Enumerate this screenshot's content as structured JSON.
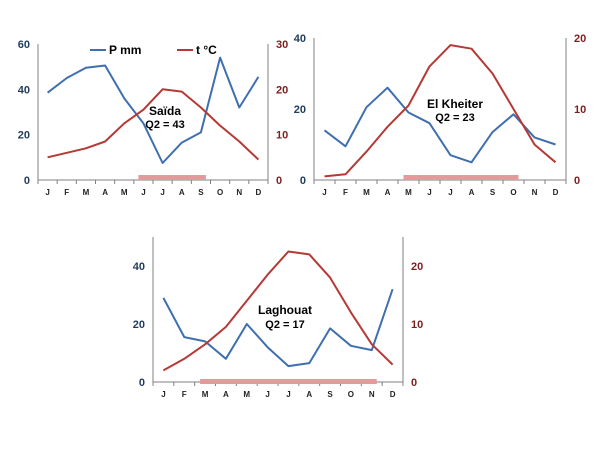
{
  "legend": {
    "precip_label": "P mm",
    "temp_label": "t °C"
  },
  "colors": {
    "precip": "#3f6fae",
    "temp": "#b53a35",
    "dry_period": "#e49a9a",
    "axis": "#808080"
  },
  "chart_data": [
    {
      "type": "line",
      "site": "Saïda",
      "q2_label": "Q2 = 43",
      "x": [
        "J",
        "F",
        "M",
        "A",
        "M",
        "J",
        "J",
        "A",
        "S",
        "O",
        "N",
        "D"
      ],
      "ylim_left": [
        0,
        60
      ],
      "ylim_right": [
        0,
        30
      ],
      "ticks_left": [
        0,
        20,
        40,
        60
      ],
      "ticks_right": [
        0,
        10,
        20,
        30
      ],
      "dry_period": {
        "from": "J",
        "to": "S",
        "from_index": 5,
        "to_index": 8
      },
      "series": [
        {
          "name": "P mm",
          "axis": "left",
          "values": [
            38.5,
            45,
            49.5,
            50.5,
            36,
            25,
            7.5,
            16.5,
            21,
            54,
            32,
            45.5
          ]
        },
        {
          "name": "t °C",
          "axis": "right",
          "values": [
            5,
            6,
            7,
            8.5,
            12.5,
            15.5,
            20,
            19.5,
            16,
            12,
            8.5,
            4.5
          ]
        }
      ]
    },
    {
      "type": "line",
      "site": "El Kheiter",
      "q2_label": "Q2 = 23",
      "x": [
        "J",
        "F",
        "M",
        "A",
        "M",
        "J",
        "J",
        "A",
        "S",
        "O",
        "N",
        "D"
      ],
      "ylim_left": [
        0,
        40
      ],
      "ylim_right": [
        0,
        20
      ],
      "ticks_left": [
        0,
        20,
        40
      ],
      "ticks_right": [
        0,
        10,
        20
      ],
      "dry_period": {
        "from": "M",
        "to": "O",
        "from_index": 4,
        "to_index": 9
      },
      "series": [
        {
          "name": "P mm",
          "axis": "left",
          "values": [
            14,
            9.5,
            20.5,
            26,
            19,
            16,
            7,
            5,
            13.5,
            18.5,
            12,
            10
          ]
        },
        {
          "name": "t °C",
          "axis": "right",
          "values": [
            0.5,
            0.8,
            4,
            7.5,
            10.5,
            16,
            19,
            18.5,
            15,
            10,
            5,
            2.5
          ]
        }
      ]
    },
    {
      "type": "line",
      "site": "Laghouat",
      "q2_label": "Q2 = 17",
      "x": [
        "J",
        "F",
        "M",
        "A",
        "M",
        "J",
        "J",
        "A",
        "S",
        "O",
        "N",
        "D"
      ],
      "ylim_left": [
        0,
        50
      ],
      "ylim_right": [
        0,
        25
      ],
      "ticks_left": [
        0,
        20,
        40
      ],
      "ticks_right": [
        0,
        10,
        20
      ],
      "dry_period": {
        "from": "M",
        "to": "N",
        "from_index": 2,
        "to_index": 10
      },
      "series": [
        {
          "name": "P mm",
          "axis": "left",
          "values": [
            29,
            15.5,
            14,
            8,
            20,
            12,
            5.5,
            6.5,
            18.5,
            12.5,
            11,
            32
          ]
        },
        {
          "name": "t °C",
          "axis": "right",
          "values": [
            2,
            4,
            6.5,
            9.5,
            14,
            18.5,
            22.5,
            22,
            18,
            12,
            6.5,
            3
          ]
        }
      ]
    }
  ]
}
